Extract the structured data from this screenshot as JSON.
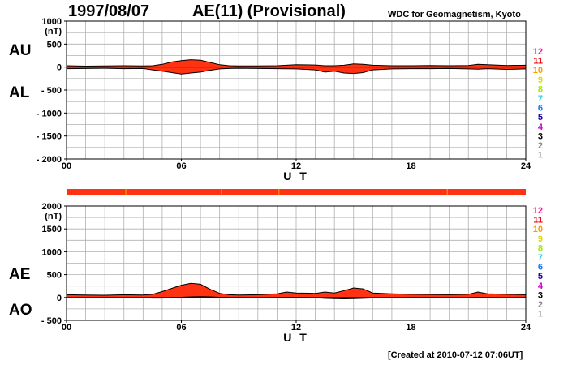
{
  "header": {
    "date": "1997/08/07",
    "index_title": "AE(11) (Provisional)",
    "source": "WDC for Geomagnetism, Kyoto"
  },
  "footer": {
    "created": "[Created at 2010-07-12 07:06UT]"
  },
  "side_labels": {
    "top_upper": "AU",
    "top_lower": "AL",
    "bottom_upper": "AE",
    "bottom_lower": "AO"
  },
  "legend": {
    "numbers": [
      "12",
      "11",
      "10",
      "9",
      "8",
      "7",
      "6",
      "5",
      "4",
      "3",
      "2",
      "1"
    ],
    "colors": [
      "#ff1493",
      "#e8000a",
      "#ff9900",
      "#dddd00",
      "#99ee00",
      "#33ccdd",
      "#1177ff",
      "#2200aa",
      "#cc00cc",
      "#000000",
      "#888888",
      "#bbbbbb"
    ]
  },
  "colors": {
    "fill": "#ff3311",
    "outline": "#000000",
    "grid": "#b0b0b0",
    "station_bar": "#ff3311",
    "station_bar_mark": "#ff9900"
  },
  "chart_data": [
    {
      "type": "area",
      "panel": "AU / AL",
      "ylabel": "(nT)",
      "xlabel": "U T",
      "xlim": [
        0,
        24
      ],
      "ylim": [
        -2000,
        1000
      ],
      "xticks": [
        "00",
        "06",
        "12",
        "18",
        "24"
      ],
      "yticks": [
        "1000",
        "500",
        "0",
        "- 500",
        "- 1000",
        "- 1500",
        "- 2000"
      ],
      "ytick_values": [
        1000,
        500,
        0,
        -500,
        -1000,
        -1500,
        -2000
      ],
      "series": [
        {
          "name": "AU",
          "x": [
            0,
            1,
            2,
            3,
            4,
            4.5,
            5,
            5.5,
            6,
            6.5,
            7,
            7.5,
            8,
            8.5,
            9,
            10,
            11,
            12,
            13,
            13.5,
            14,
            14.5,
            15,
            15.5,
            16,
            17,
            18,
            19,
            20,
            21,
            21.5,
            22,
            23,
            24
          ],
          "values": [
            30,
            20,
            25,
            30,
            25,
            30,
            60,
            110,
            140,
            160,
            150,
            100,
            50,
            30,
            25,
            25,
            30,
            50,
            45,
            30,
            30,
            40,
            70,
            60,
            40,
            30,
            30,
            35,
            30,
            35,
            60,
            50,
            35,
            40
          ]
        },
        {
          "name": "AL",
          "x": [
            0,
            1,
            2,
            3,
            4,
            4.5,
            5,
            5.5,
            6,
            6.5,
            7,
            7.5,
            8,
            8.5,
            9,
            10,
            11,
            12,
            13,
            13.5,
            14,
            14.5,
            15,
            15.5,
            16,
            17,
            18,
            19,
            20,
            21,
            21.5,
            22,
            23,
            24
          ],
          "values": [
            -35,
            -30,
            -25,
            -35,
            -30,
            -60,
            -90,
            -120,
            -150,
            -130,
            -110,
            -70,
            -40,
            -30,
            -25,
            -30,
            -35,
            -40,
            -60,
            -110,
            -90,
            -130,
            -140,
            -120,
            -60,
            -40,
            -35,
            -35,
            -30,
            -40,
            -45,
            -35,
            -50,
            -40
          ]
        }
      ]
    },
    {
      "type": "area",
      "panel": "AE / AO",
      "ylabel": "(nT)",
      "xlabel": "U T",
      "xlim": [
        0,
        24
      ],
      "ylim": [
        -500,
        2000
      ],
      "xticks": [
        "00",
        "06",
        "12",
        "18",
        "24"
      ],
      "yticks": [
        "2000",
        "1500",
        "1000",
        "500",
        "0",
        "- 500"
      ],
      "ytick_values": [
        2000,
        1500,
        1000,
        500,
        0,
        -500
      ],
      "series": [
        {
          "name": "AE",
          "x": [
            0,
            1,
            2,
            3,
            4,
            4.5,
            5,
            5.5,
            6,
            6.5,
            7,
            7.5,
            8,
            8.5,
            9,
            10,
            11,
            11.5,
            12,
            13,
            13.5,
            14,
            14.5,
            15,
            15.5,
            16,
            17,
            18,
            19,
            20,
            21,
            21.5,
            22,
            23,
            24
          ],
          "values": [
            60,
            55,
            50,
            60,
            55,
            70,
            130,
            200,
            270,
            310,
            290,
            180,
            90,
            60,
            55,
            60,
            80,
            120,
            100,
            90,
            120,
            100,
            150,
            210,
            190,
            100,
            80,
            70,
            65,
            60,
            70,
            120,
            80,
            70,
            60
          ]
        },
        {
          "name": "AO",
          "x": [
            0,
            1,
            2,
            3,
            4,
            4.5,
            5,
            5.5,
            6,
            6.5,
            7,
            7.5,
            8,
            8.5,
            9,
            10,
            11,
            11.5,
            12,
            13,
            13.5,
            14,
            14.5,
            15,
            15.5,
            16,
            17,
            18,
            19,
            20,
            21,
            21.5,
            22,
            23,
            24
          ],
          "values": [
            -5,
            -5,
            0,
            -5,
            -5,
            -15,
            -15,
            0,
            5,
            15,
            20,
            15,
            5,
            0,
            0,
            -5,
            0,
            5,
            5,
            -5,
            -20,
            -25,
            -30,
            -25,
            -20,
            -10,
            -5,
            0,
            0,
            -5,
            -5,
            5,
            0,
            -5,
            0
          ]
        }
      ]
    }
  ]
}
